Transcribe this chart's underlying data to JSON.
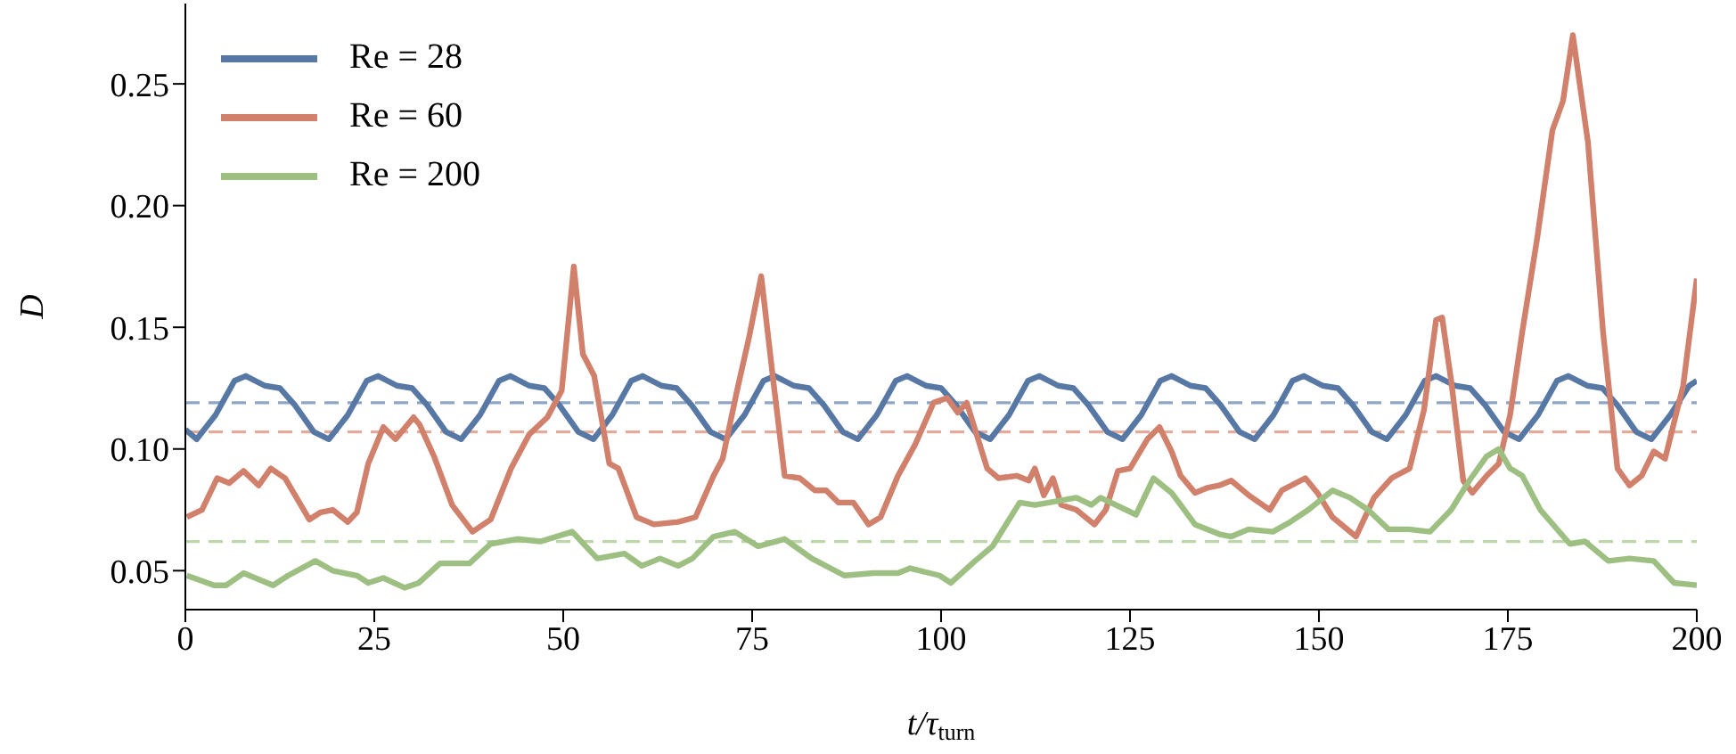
{
  "chart_data": {
    "type": "line",
    "xlabel": "t/τ$_{turn}$",
    "ylabel": "D",
    "xlim": [
      0,
      200
    ],
    "ylim": [
      0.034,
      0.283
    ],
    "xticks": [
      0,
      25,
      50,
      75,
      100,
      125,
      150,
      175,
      200
    ],
    "yticks": [
      {
        "value": 0.05,
        "label": "0.05"
      },
      {
        "value": 0.1,
        "label": "0.10"
      },
      {
        "value": 0.15,
        "label": "0.15"
      },
      {
        "value": 0.2,
        "label": "0.20"
      },
      {
        "value": 0.25,
        "label": "0.25"
      }
    ],
    "grid": false,
    "legend": "top left",
    "line_style": "solid",
    "marker": "none",
    "ref_lines": [
      {
        "axis": "y",
        "value": 0.119,
        "color": "#8fa5c4",
        "line_style": "dashed"
      },
      {
        "axis": "y",
        "value": 0.107,
        "color": "#e4ab9b",
        "line_style": "dashed"
      },
      {
        "axis": "y",
        "value": 0.062,
        "color": "#bdd6a9",
        "line_style": "dashed"
      }
    ],
    "series": [
      {
        "name": "Re = 28",
        "color": "#5778a4",
        "x": [
          0,
          1.5,
          4,
          6.5,
          8,
          10.5,
          12.5,
          14.5,
          17,
          19,
          21.5,
          24,
          25.5,
          28,
          30,
          32,
          34.5,
          36.5,
          39,
          41.5,
          43,
          45.5,
          47.5,
          49.5,
          52,
          54,
          56.5,
          59,
          60.5,
          63,
          65,
          67,
          69.5,
          71.5,
          74,
          76.5,
          78,
          80.5,
          82.5,
          84.5,
          87,
          89,
          91.5,
          94,
          95.5,
          98,
          100,
          102,
          104.5,
          106.5,
          109,
          111.5,
          113,
          115.5,
          117.5,
          119.5,
          122,
          124,
          126.5,
          129,
          130.5,
          133,
          135,
          137,
          139.5,
          141.5,
          144,
          146.5,
          148,
          150.5,
          152.5,
          154.5,
          157,
          159,
          161.5,
          164,
          165.5,
          168,
          170,
          172,
          174.5,
          176.5,
          179,
          181.5,
          183,
          185.5,
          187.5,
          189.5,
          192,
          194,
          196.5,
          199,
          200
        ],
        "values": [
          0.108,
          0.104,
          0.114,
          0.128,
          0.13,
          0.126,
          0.125,
          0.118,
          0.107,
          0.104,
          0.114,
          0.128,
          0.13,
          0.126,
          0.125,
          0.118,
          0.107,
          0.104,
          0.114,
          0.128,
          0.13,
          0.126,
          0.125,
          0.118,
          0.107,
          0.104,
          0.114,
          0.128,
          0.13,
          0.126,
          0.125,
          0.118,
          0.107,
          0.104,
          0.114,
          0.128,
          0.13,
          0.126,
          0.125,
          0.118,
          0.107,
          0.104,
          0.114,
          0.128,
          0.13,
          0.126,
          0.125,
          0.118,
          0.107,
          0.104,
          0.114,
          0.128,
          0.13,
          0.126,
          0.125,
          0.118,
          0.107,
          0.104,
          0.114,
          0.128,
          0.13,
          0.126,
          0.125,
          0.118,
          0.107,
          0.104,
          0.114,
          0.128,
          0.13,
          0.126,
          0.125,
          0.118,
          0.107,
          0.104,
          0.114,
          0.128,
          0.13,
          0.126,
          0.125,
          0.118,
          0.107,
          0.104,
          0.114,
          0.128,
          0.13,
          0.126,
          0.125,
          0.118,
          0.107,
          0.104,
          0.114,
          0.126,
          0.128
        ]
      },
      {
        "name": "Re = 60",
        "color": "#d1816b",
        "x": [
          0.2,
          2.2,
          4.2,
          5.8,
          7.7,
          9.7,
          11.3,
          13.2,
          16.4,
          17.9,
          19.5,
          21.5,
          22.7,
          24.2,
          26.2,
          27.8,
          30.2,
          31,
          32.9,
          35.3,
          38,
          40.4,
          43.1,
          45.5,
          47.9,
          49.8,
          51.4,
          52.6,
          54.1,
          56.1,
          57.3,
          59.7,
          62,
          65.2,
          67.5,
          69.9,
          71.1,
          73,
          74.6,
          76.2,
          77.8,
          79.3,
          81.3,
          83.3,
          84.8,
          86.4,
          88.4,
          90.4,
          92,
          94.3,
          96.6,
          99,
          100.8,
          102.2,
          103.4,
          106.1,
          107.6,
          110,
          111.6,
          112.4,
          113.6,
          114.8,
          115.9,
          117.9,
          120.3,
          121.8,
          123.4,
          125,
          127.3,
          128.9,
          130.5,
          131.7,
          133.6,
          135.2,
          136.8,
          138.4,
          140.7,
          143.5,
          145.1,
          148.2,
          149.8,
          151.8,
          154.9,
          157.3,
          159.6,
          162,
          163.9,
          165.5,
          166.3,
          167.5,
          169.1,
          170.3,
          172.2,
          173.8,
          175.3,
          176.9,
          178.9,
          180.9,
          182.3,
          183.6,
          185.6,
          187.6,
          189.5,
          191.1,
          192.7,
          194.3,
          195.8,
          198.2,
          200
        ],
        "values": [
          0.072,
          0.075,
          0.088,
          0.086,
          0.091,
          0.085,
          0.092,
          0.088,
          0.071,
          0.074,
          0.075,
          0.07,
          0.074,
          0.094,
          0.109,
          0.104,
          0.113,
          0.11,
          0.097,
          0.077,
          0.066,
          0.071,
          0.092,
          0.106,
          0.113,
          0.124,
          0.175,
          0.139,
          0.13,
          0.094,
          0.092,
          0.072,
          0.069,
          0.07,
          0.072,
          0.089,
          0.096,
          0.124,
          0.146,
          0.171,
          0.128,
          0.089,
          0.088,
          0.083,
          0.083,
          0.078,
          0.078,
          0.069,
          0.072,
          0.089,
          0.102,
          0.119,
          0.121,
          0.115,
          0.119,
          0.092,
          0.088,
          0.089,
          0.087,
          0.092,
          0.081,
          0.088,
          0.077,
          0.075,
          0.069,
          0.075,
          0.091,
          0.092,
          0.104,
          0.109,
          0.099,
          0.089,
          0.082,
          0.084,
          0.085,
          0.087,
          0.081,
          0.075,
          0.083,
          0.088,
          0.082,
          0.072,
          0.064,
          0.08,
          0.088,
          0.092,
          0.116,
          0.153,
          0.154,
          0.128,
          0.087,
          0.082,
          0.089,
          0.094,
          0.114,
          0.148,
          0.187,
          0.231,
          0.243,
          0.27,
          0.226,
          0.148,
          0.092,
          0.085,
          0.089,
          0.099,
          0.096,
          0.126,
          0.17
        ]
      },
      {
        "name": "Re = 200",
        "color": "#9dbf82",
        "x": [
          0.2,
          3.8,
          5.4,
          7.7,
          11.6,
          13.6,
          17.2,
          19.5,
          22.7,
          24.2,
          26.2,
          29,
          30.9,
          33.7,
          37.6,
          40.4,
          43.9,
          47,
          51.2,
          54.5,
          58.1,
          60.4,
          62.8,
          65.2,
          67.1,
          69.9,
          72.7,
          75.8,
          79.3,
          82.9,
          87.2,
          91.1,
          94.3,
          95.9,
          99.8,
          101.3,
          104.5,
          106.8,
          110.4,
          112.4,
          114.3,
          117.9,
          119.9,
          121.1,
          125.8,
          128.1,
          130.5,
          133.6,
          136.8,
          138.4,
          140.7,
          143.9,
          146.2,
          148.6,
          151.8,
          154.1,
          156.5,
          159.2,
          161.9,
          164.7,
          167.5,
          169.9,
          172.2,
          173.8,
          175.3,
          176.9,
          179.3,
          183.2,
          185.2,
          188.3,
          191.1,
          194.3,
          197,
          200
        ],
        "values": [
          0.048,
          0.044,
          0.044,
          0.049,
          0.044,
          0.048,
          0.054,
          0.05,
          0.048,
          0.045,
          0.047,
          0.043,
          0.045,
          0.053,
          0.053,
          0.061,
          0.063,
          0.062,
          0.066,
          0.055,
          0.057,
          0.052,
          0.055,
          0.052,
          0.055,
          0.064,
          0.066,
          0.06,
          0.063,
          0.055,
          0.048,
          0.049,
          0.049,
          0.051,
          0.048,
          0.045,
          0.054,
          0.06,
          0.078,
          0.077,
          0.078,
          0.08,
          0.077,
          0.08,
          0.073,
          0.088,
          0.082,
          0.069,
          0.065,
          0.064,
          0.067,
          0.066,
          0.07,
          0.075,
          0.083,
          0.08,
          0.075,
          0.067,
          0.067,
          0.066,
          0.075,
          0.087,
          0.097,
          0.1,
          0.092,
          0.089,
          0.075,
          0.061,
          0.062,
          0.054,
          0.055,
          0.054,
          0.045,
          0.044
        ]
      }
    ]
  }
}
